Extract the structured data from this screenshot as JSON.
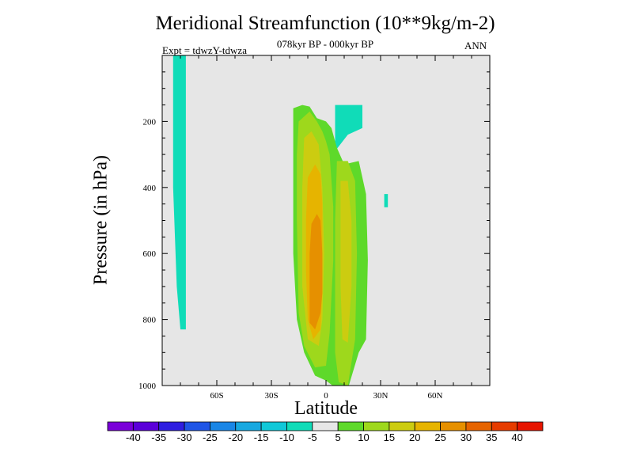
{
  "chart_data": {
    "type": "contour",
    "title": "Meridional Streamfunction (10**9kg/m-2)",
    "subtitle": "078kyr BP - 000kyr BP",
    "left_label": "Expt = tdwzY-tdwza",
    "right_label": "ANN",
    "xlabel": "Latitude",
    "ylabel": "Pressure (in hPa)",
    "xlim": [
      -90,
      90
    ],
    "ylim": [
      0,
      1000
    ],
    "y_reversed": true,
    "grid": false,
    "background_color": "#e6e6e6",
    "x_ticks": [
      {
        "value": -60,
        "label": "60S"
      },
      {
        "value": -30,
        "label": "30S"
      },
      {
        "value": 0,
        "label": "0"
      },
      {
        "value": 30,
        "label": "30N"
      },
      {
        "value": 60,
        "label": "60N"
      }
    ],
    "y_ticks": [
      {
        "value": 200,
        "label": "200"
      },
      {
        "value": 400,
        "label": "400"
      },
      {
        "value": 600,
        "label": "600"
      },
      {
        "value": 800,
        "label": "800"
      },
      {
        "value": 1000,
        "label": "1000"
      }
    ],
    "colorbar": {
      "levels": [
        -40,
        -35,
        -30,
        -25,
        -20,
        -15,
        -10,
        -5,
        5,
        10,
        15,
        20,
        25,
        30,
        35,
        40
      ],
      "colors": [
        "#7a00d9",
        "#5b00d9",
        "#2f1ee0",
        "#1f55e6",
        "#1a86e6",
        "#18a8e0",
        "#10c8d8",
        "#10dcb8",
        "#e6e6e6",
        "#5ed92a",
        "#9ed81c",
        "#cccc10",
        "#e6b400",
        "#e69000",
        "#e66400",
        "#e63c00",
        "#e61400"
      ]
    },
    "contours": [
      {
        "level": "-10 to -5",
        "color": "#10dcb8",
        "polygons": [
          [
            [
              -84,
              0
            ],
            [
              -77,
              0
            ],
            [
              -77,
              830
            ],
            [
              -80,
              830
            ],
            [
              -82,
              700
            ],
            [
              -84,
              400
            ]
          ],
          [
            [
              5,
              150
            ],
            [
              20,
              150
            ],
            [
              20,
              220
            ],
            [
              12,
              240
            ],
            [
              5,
              290
            ]
          ],
          [
            [
              32,
              420
            ],
            [
              34,
              420
            ],
            [
              34,
              460
            ],
            [
              32,
              460
            ]
          ]
        ]
      },
      {
        "level": "5 to 10",
        "color": "#5ed92a",
        "polygons": [
          [
            [
              -18,
              160
            ],
            [
              -13,
              150
            ],
            [
              -9,
              155
            ],
            [
              -5,
              190
            ],
            [
              0,
              200
            ],
            [
              3,
              220
            ],
            [
              6,
              280
            ],
            [
              10,
              330
            ],
            [
              18,
              320
            ],
            [
              22,
              420
            ],
            [
              23,
              620
            ],
            [
              22,
              860
            ],
            [
              18,
              900
            ],
            [
              12,
              1010
            ],
            [
              6,
              1010
            ],
            [
              0,
              985
            ],
            [
              -6,
              970
            ],
            [
              -12,
              900
            ],
            [
              -16,
              800
            ],
            [
              -18,
              600
            ],
            [
              -18,
              200
            ]
          ]
        ]
      },
      {
        "level": "10 to 15",
        "color": "#9ed81c",
        "polygons": [
          [
            [
              -15,
              200
            ],
            [
              -9,
              170
            ],
            [
              -5,
              200
            ],
            [
              -2,
              230
            ],
            [
              0,
              260
            ],
            [
              2,
              300
            ],
            [
              4,
              460
            ],
            [
              4,
              620
            ],
            [
              2,
              840
            ],
            [
              0,
              940
            ],
            [
              -6,
              945
            ],
            [
              -12,
              880
            ],
            [
              -15,
              780
            ],
            [
              -16,
              500
            ],
            [
              -16,
              300
            ]
          ],
          [
            [
              6,
              320
            ],
            [
              12,
              320
            ],
            [
              16,
              380
            ],
            [
              17,
              600
            ],
            [
              16,
              860
            ],
            [
              12,
              1000
            ],
            [
              7,
              990
            ],
            [
              5,
              900
            ],
            [
              5,
              500
            ]
          ]
        ]
      },
      {
        "level": "15 to 20",
        "color": "#cccc10",
        "polygons": [
          [
            [
              -12,
              250
            ],
            [
              -8,
              230
            ],
            [
              -4,
              270
            ],
            [
              -2,
              400
            ],
            [
              -1,
              600
            ],
            [
              -2,
              800
            ],
            [
              -4,
              880
            ],
            [
              -10,
              860
            ],
            [
              -13,
              700
            ],
            [
              -13,
              400
            ]
          ],
          [
            [
              8,
              380
            ],
            [
              12,
              380
            ],
            [
              14,
              500
            ],
            [
              14,
              700
            ],
            [
              12,
              870
            ],
            [
              9,
              860
            ],
            [
              8,
              700
            ]
          ]
        ]
      },
      {
        "level": "20 to 25",
        "color": "#e6b400",
        "polygons": [
          [
            [
              -10,
              370
            ],
            [
              -6,
              330
            ],
            [
              -3,
              360
            ],
            [
              -2,
              450
            ],
            [
              -2,
              700
            ],
            [
              -3,
              830
            ],
            [
              -7,
              860
            ],
            [
              -10,
              800
            ],
            [
              -11,
              650
            ],
            [
              -11,
              500
            ]
          ]
        ]
      },
      {
        "level": "25 to 30",
        "color": "#e69000",
        "polygons": [
          [
            [
              -8,
              510
            ],
            [
              -5,
              480
            ],
            [
              -3,
              500
            ],
            [
              -2,
              600
            ],
            [
              -2,
              720
            ],
            [
              -3,
              780
            ],
            [
              -6,
              830
            ],
            [
              -9,
              810
            ],
            [
              -9,
              700
            ],
            [
              -9,
              600
            ]
          ]
        ]
      }
    ]
  }
}
